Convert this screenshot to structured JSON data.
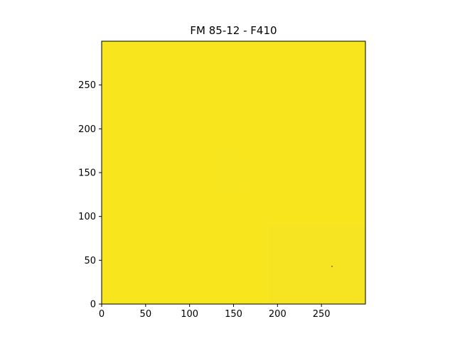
{
  "chart_data": {
    "type": "heatmap",
    "title": "FM 85-12 - F410",
    "xlabel": "",
    "ylabel": "",
    "xlim": [
      0,
      300
    ],
    "ylim": [
      0,
      300
    ],
    "x_ticks": [
      0,
      50,
      100,
      150,
      200,
      250
    ],
    "y_ticks": [
      0,
      50,
      100,
      150,
      200,
      250
    ],
    "colormap": "viridis",
    "fill_color": "#f8e51e",
    "grid": false,
    "marks": [
      {
        "kind": "dot",
        "x": 262,
        "y": 43,
        "color": "#3b3b1a"
      }
    ],
    "faint_regions": [
      {
        "x": [
          190,
          300
        ],
        "y": [
          0,
          90
        ],
        "color": "#f5e226"
      },
      {
        "x": [
          130,
          160
        ],
        "y": [
          130,
          170
        ],
        "color": "#f7e422"
      }
    ]
  }
}
